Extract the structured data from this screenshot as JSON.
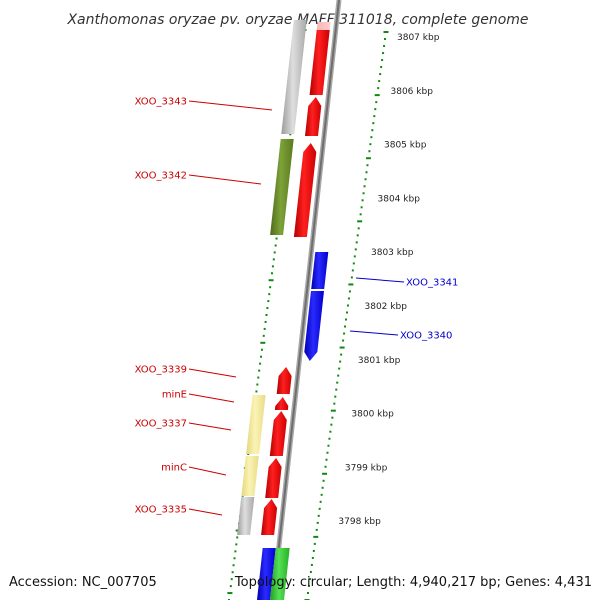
{
  "title": "Xanthomonas oryzae pv. oryzae MAFF 311018, complete genome",
  "footer": {
    "accession": "Accession: NC_007705",
    "topology": "Topology: circular; Length: 4,940,217 bp; Genes: 4,431"
  },
  "kbp_ticks": [
    "3807 kbp",
    "3806 kbp",
    "3805 kbp",
    "3804 kbp",
    "3803 kbp",
    "3802 kbp",
    "3801 kbp",
    "3800 kbp",
    "3799 kbp",
    "3798 kbp"
  ],
  "gene_labels_left": [
    "XOO_3343",
    "XOO_3342",
    "XOO_3339",
    "minE",
    "XOO_3337",
    "minC",
    "XOO_3335"
  ],
  "gene_labels_right": [
    "XOO_3341",
    "XOO_3340"
  ],
  "colors": {
    "forward_gene": "#ff0000",
    "reverse_gene": "#0000ff",
    "left_label": "#cc0000",
    "right_label": "#0000cc",
    "gc_marks": "#118811",
    "backbone": "#888888",
    "cog_gray": "#bbbbbb",
    "cog_olive": "#6b8e23",
    "cog_yellow": "#f0e68c",
    "cog_green": "#33cc33"
  }
}
